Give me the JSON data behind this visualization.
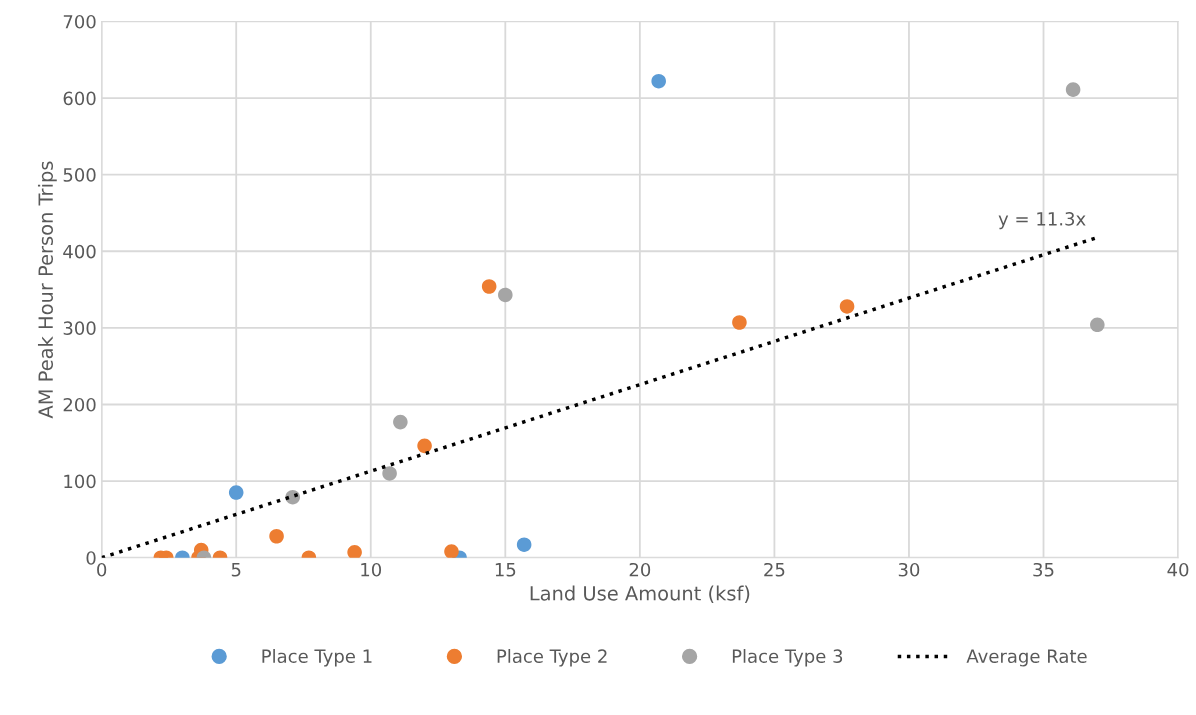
{
  "chart_data": {
    "type": "scatter",
    "xlabel": "Land Use Amount (ksf)",
    "ylabel": "AM Peak Hour Person Trips",
    "xlim": [
      0,
      40
    ],
    "xticks": [
      0,
      5,
      10,
      15,
      20,
      25,
      30,
      35,
      40
    ],
    "ylim": [
      0,
      700
    ],
    "yticks": [
      0,
      100,
      200,
      300,
      400,
      500,
      600,
      700
    ],
    "grid": true,
    "legend": "bottom",
    "marker": "circle",
    "series": [
      {
        "name": "Place Type 1",
        "color": "#5b9bd5",
        "x": [
          3.0,
          5.0,
          13.3,
          15.7,
          20.7
        ],
        "values": [
          0,
          85,
          0,
          17,
          622
        ]
      },
      {
        "name": "Place Type 2",
        "color": "#ed7d31",
        "x": [
          2.2,
          2.4,
          3.6,
          3.7,
          4.4,
          6.5,
          7.7,
          9.4,
          12.0,
          13.0,
          14.4,
          23.7,
          27.7
        ],
        "values": [
          0,
          0,
          0,
          10,
          0,
          28,
          0,
          7,
          146,
          8,
          354,
          307,
          328
        ]
      },
      {
        "name": "Place Type 3",
        "color": "#a5a5a5",
        "x": [
          3.8,
          7.1,
          10.7,
          11.1,
          15.0,
          36.1,
          37.0
        ],
        "values": [
          0,
          79,
          110,
          177,
          343,
          611,
          304
        ]
      },
      {
        "name": "Average Rate",
        "type": "line",
        "line_style": "dotted",
        "marker": "none",
        "color": "#000000",
        "x": [
          0,
          37
        ],
        "values": [
          0,
          418
        ]
      }
    ],
    "annotations": [
      "y = 11.3x"
    ]
  }
}
